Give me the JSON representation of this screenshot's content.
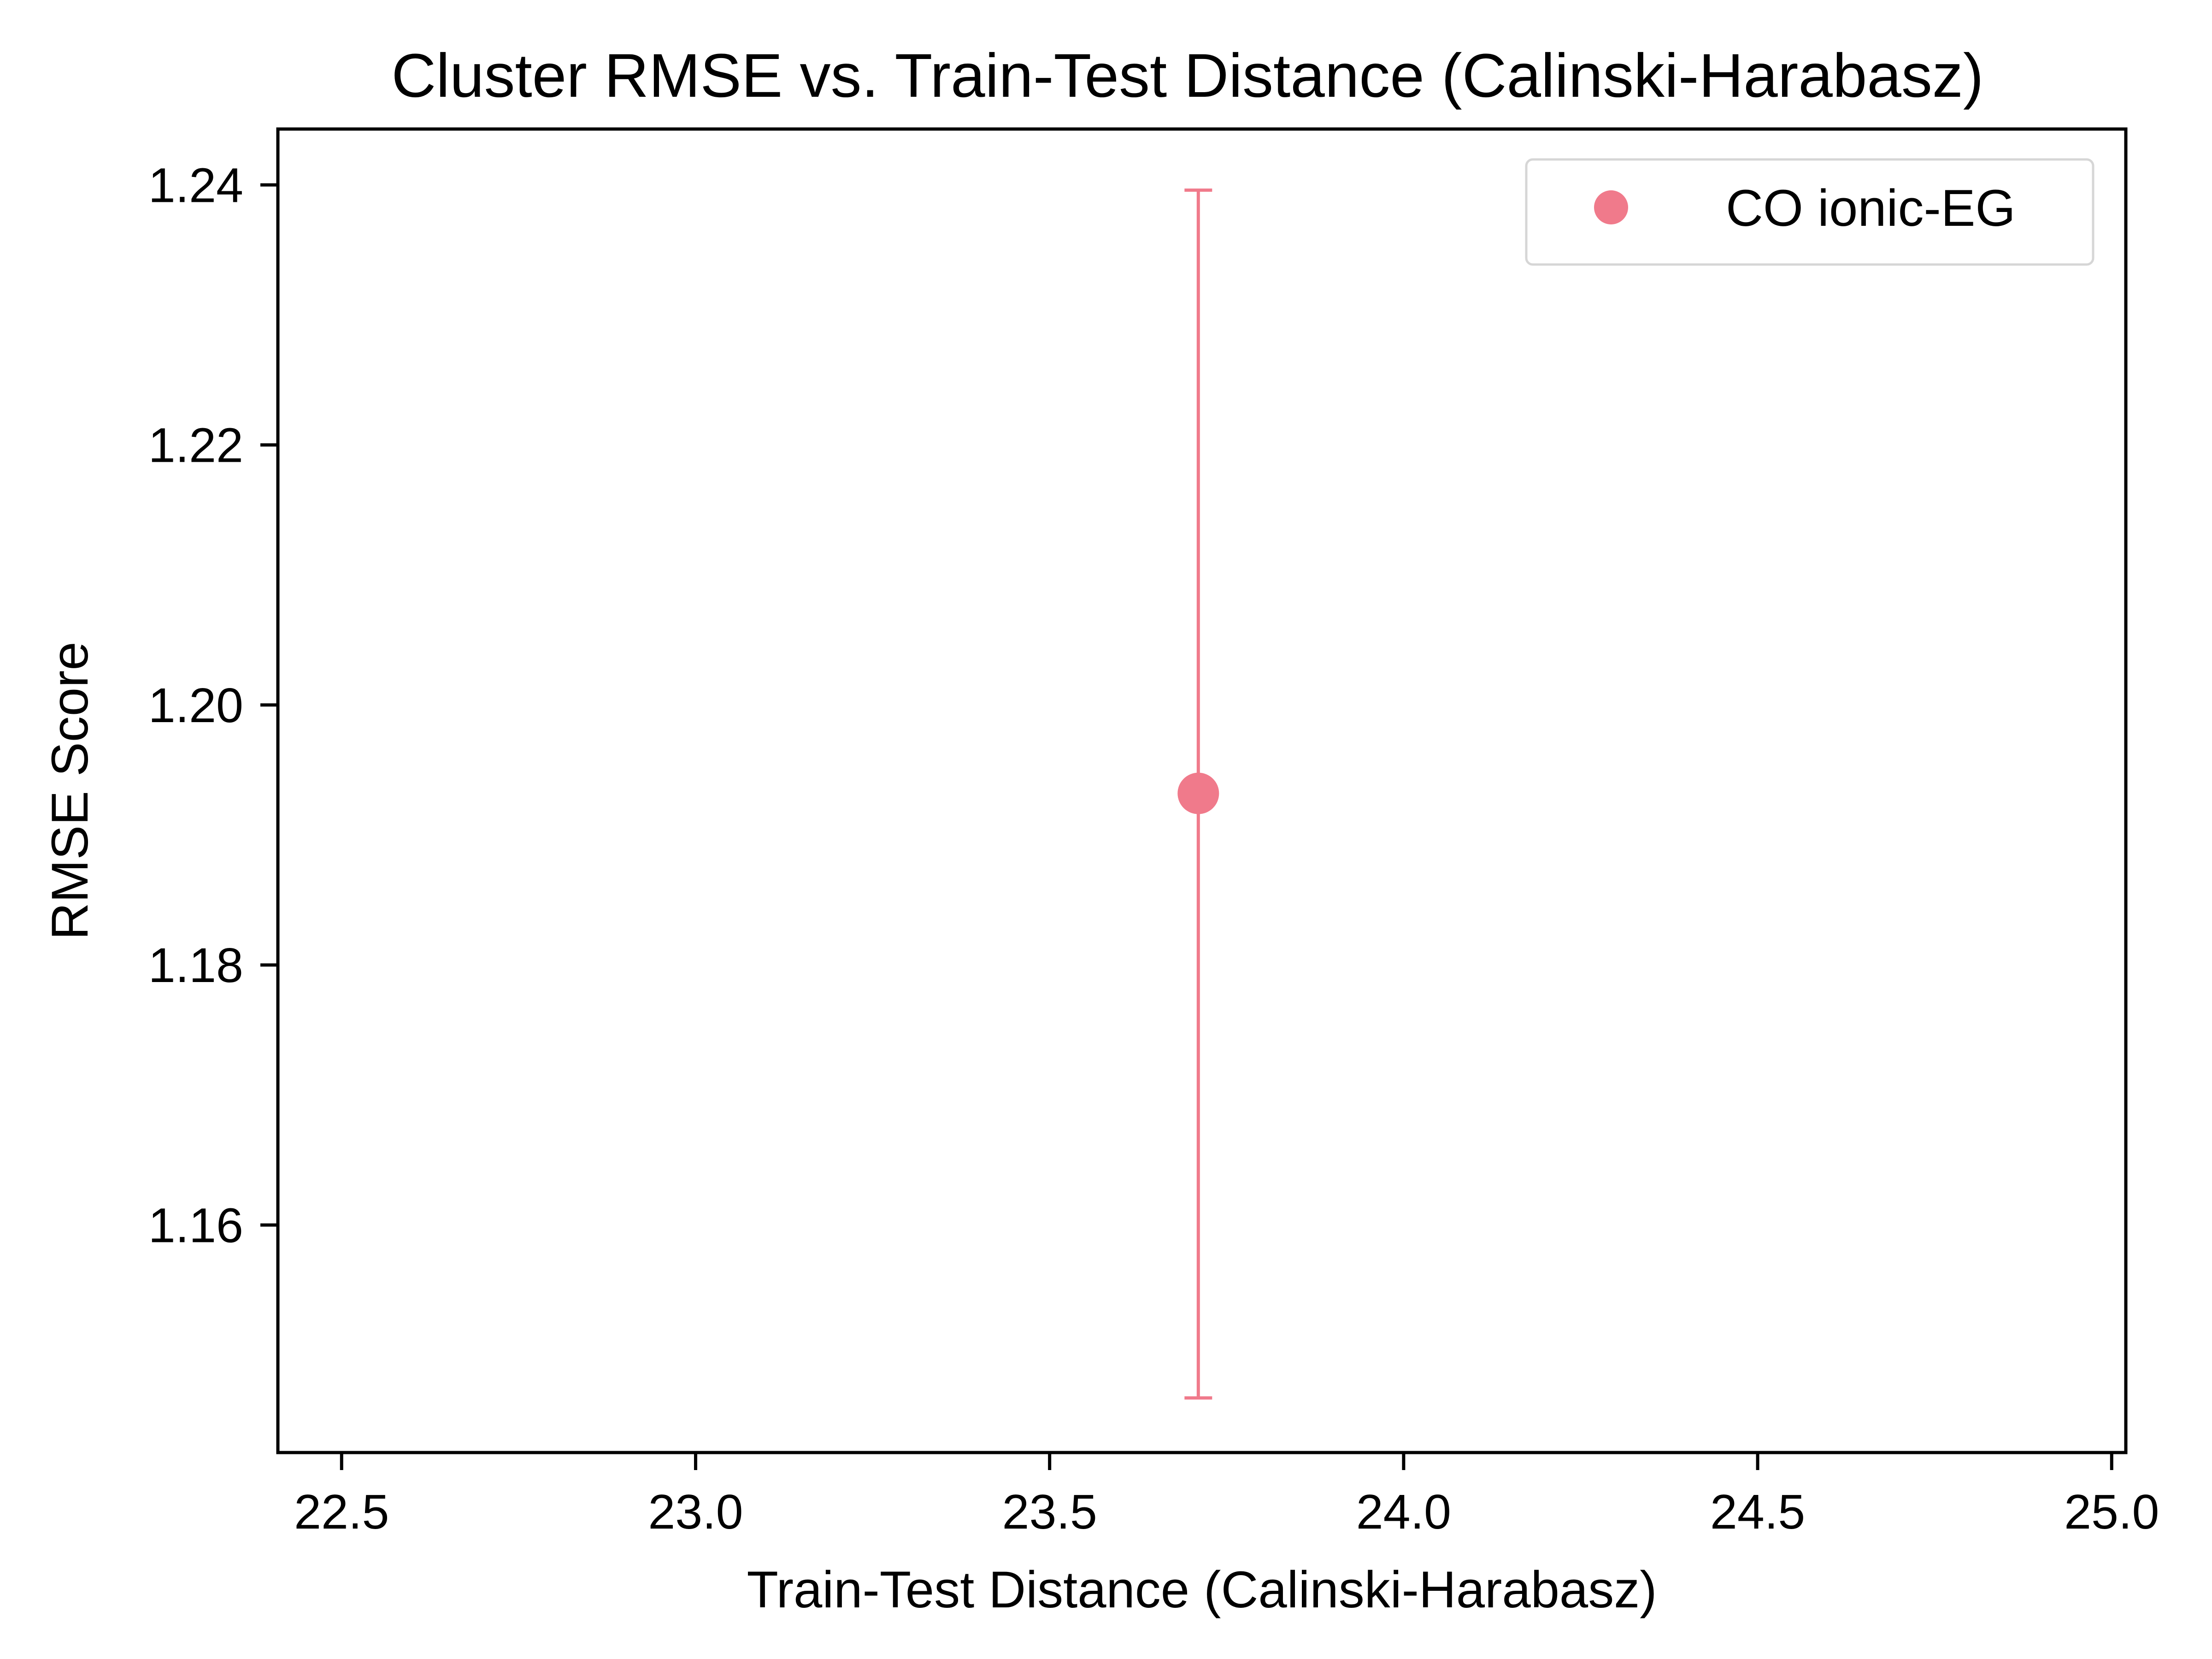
{
  "chart_data": {
    "type": "scatter",
    "title": "Cluster RMSE vs. Train-Test Distance (Calinski-Harabasz)",
    "xlabel": "Train-Test Distance (Calinski-Harabasz)",
    "ylabel": "RMSE Score",
    "xlim": [
      22.41,
      25.02
    ],
    "ylim": [
      1.1425,
      1.2443
    ],
    "x_ticks": [
      22.5,
      23.0,
      23.5,
      24.0,
      24.5,
      25.0
    ],
    "x_tick_labels": [
      "22.5",
      "23.0",
      "23.5",
      "24.0",
      "24.5",
      "25.0"
    ],
    "y_ticks": [
      1.16,
      1.18,
      1.2,
      1.22,
      1.24
    ],
    "y_tick_labels": [
      "1.16",
      "1.18",
      "1.20",
      "1.22",
      "1.24"
    ],
    "grid": false,
    "legend_position": "top-right",
    "series": [
      {
        "name": "CO ionic-EG",
        "color": "#f07a8b",
        "points": [
          {
            "x": 23.71,
            "y": 1.1932,
            "y_err_low": 1.1467,
            "y_err_high": 1.2396
          }
        ]
      }
    ]
  }
}
